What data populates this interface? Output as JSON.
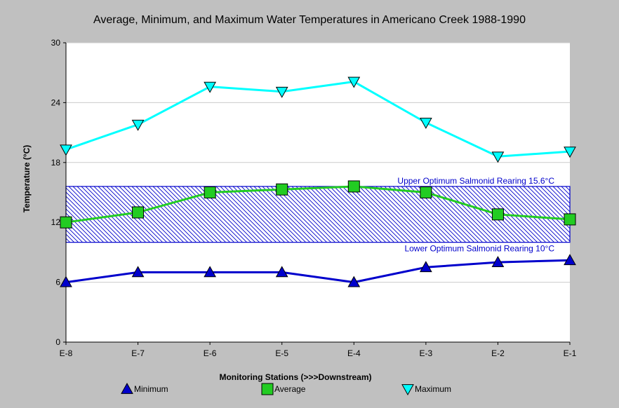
{
  "chart_data": {
    "type": "line",
    "title": "Average, Minimum, and Maximum Water Temperatures in Americano Creek 1988-1990",
    "xlabel": "Monitoring Stations (>>>Downstream)",
    "ylabel": "Temperature (°C)",
    "categories": [
      "E-8",
      "E-7",
      "E-6",
      "E-5",
      "E-4",
      "E-3",
      "E-2",
      "E-1"
    ],
    "ylim": [
      0,
      30
    ],
    "yticks": [
      0,
      6,
      12,
      18,
      24,
      30
    ],
    "grid": true,
    "legend_position": "bottom",
    "series": [
      {
        "name": "Minimum",
        "marker": "triangle-up",
        "color": "#0000cc",
        "values": [
          6.0,
          7.0,
          7.0,
          7.0,
          6.0,
          7.5,
          8.0,
          8.2
        ]
      },
      {
        "name": "Average",
        "marker": "square",
        "color": "#22cc22",
        "values": [
          12.0,
          13.0,
          15.0,
          15.3,
          15.6,
          15.0,
          12.8,
          12.3
        ]
      },
      {
        "name": "Maximum",
        "marker": "triangle-down",
        "color": "#00ffff",
        "values": [
          19.3,
          21.8,
          25.6,
          25.1,
          26.1,
          22.0,
          18.6,
          19.1
        ]
      }
    ],
    "band": {
      "low": 10,
      "high": 15.6,
      "color": "#0000cc",
      "upper_label": "Upper Optimum Salmonid Rearing 15.6°C",
      "lower_label": "Lower Optimum Salmonid Rearing 10°C"
    }
  }
}
